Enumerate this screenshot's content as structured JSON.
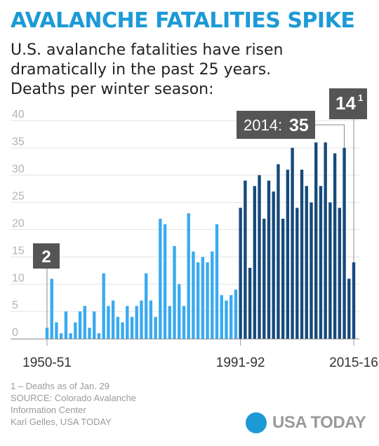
{
  "header": {
    "title": "AVALANCHE FATALITIES SPIKE",
    "subtitle_lines": [
      "U.S. avalanche fatalities have risen",
      "dramatically in the past 25 years.",
      "Deaths per winter season:"
    ]
  },
  "colors": {
    "accent": "#1c9ad6",
    "series_early": "#3aaaf0",
    "series_recent": "#174a7c",
    "callout_bg": "#555555"
  },
  "chart_data": {
    "type": "bar",
    "ylim": [
      0,
      40
    ],
    "yticks": [
      "0",
      "5",
      "10",
      "15",
      "20",
      "25",
      "30",
      "35",
      "40"
    ],
    "x_tick_labels": [
      "1950-51",
      "1991-92",
      "2015-16"
    ],
    "grid": true,
    "series": [
      {
        "seasons": "1950-51 to 1990-91",
        "values": [
          2,
          11,
          3,
          1,
          5,
          1,
          3,
          5,
          6,
          2,
          5,
          1,
          12,
          6,
          7,
          4,
          3,
          6,
          4,
          6,
          7,
          12,
          7,
          4,
          22,
          21,
          6,
          17,
          10,
          6,
          23,
          16,
          14,
          15,
          14,
          16,
          21,
          8,
          7,
          8,
          9
        ]
      },
      {
        "seasons": "1991-92 to 2015-16",
        "values": [
          24,
          29,
          13,
          28,
          30,
          22,
          29,
          27,
          32,
          22,
          31,
          35,
          24,
          31,
          28,
          25,
          36,
          28,
          36,
          25,
          34,
          24,
          35,
          11,
          14
        ]
      }
    ],
    "annotations": [
      {
        "label": "2",
        "season": "1950-51"
      },
      {
        "label": "2014:",
        "value_label": "35",
        "season": "2013-14"
      },
      {
        "label": "14",
        "superscript": "1",
        "season": "2015-16"
      }
    ]
  },
  "footnotes": {
    "note": "1 – Deaths as of Jan. 29",
    "source_lines": [
      "SOURCE: Colorado Avalanche",
      "Information Center"
    ],
    "credit": "Karl Gelles, USA TODAY"
  },
  "logo": {
    "text": "USA TODAY"
  }
}
